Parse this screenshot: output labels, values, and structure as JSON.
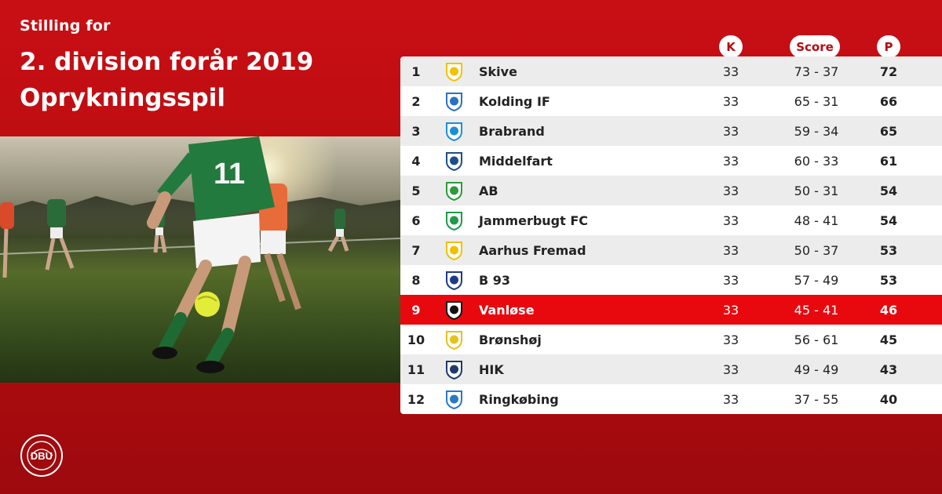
{
  "header": {
    "kicker": "Stilling for",
    "title_line1": "2. division forår 2019",
    "title_line2": "Oprykningsspil"
  },
  "columns": {
    "k": "K",
    "score": "Score",
    "p": "P"
  },
  "colors": {
    "brand_red": "#c80f14",
    "highlight_red": "#e8090f"
  },
  "standings": [
    {
      "pos": "1",
      "team": "Skive",
      "k": "33",
      "score": "73 - 37",
      "p": "72",
      "crest": "skive-crest-icon",
      "crest_color": "#f2c200"
    },
    {
      "pos": "2",
      "team": "Kolding IF",
      "k": "33",
      "score": "65 - 31",
      "p": "66",
      "crest": "kolding-if-crest-icon",
      "crest_color": "#2a72c4"
    },
    {
      "pos": "3",
      "team": "Brabrand",
      "k": "33",
      "score": "59 - 34",
      "p": "65",
      "crest": "brabrand-crest-icon",
      "crest_color": "#1b8fd6"
    },
    {
      "pos": "4",
      "team": "Middelfart",
      "k": "33",
      "score": "60 - 33",
      "p": "61",
      "crest": "middelfart-crest-icon",
      "crest_color": "#1d4e8a"
    },
    {
      "pos": "5",
      "team": "AB",
      "k": "33",
      "score": "50 - 31",
      "p": "54",
      "crest": "ab-crest-icon",
      "crest_color": "#2e9a3a"
    },
    {
      "pos": "6",
      "team": "Jammerbugt FC",
      "k": "33",
      "score": "48 - 41",
      "p": "54",
      "crest": "jammerbugt-fc-crest-icon",
      "crest_color": "#1f9a4a"
    },
    {
      "pos": "7",
      "team": "Aarhus Fremad",
      "k": "33",
      "score": "50 - 37",
      "p": "53",
      "crest": "aarhus-fremad-crest-icon",
      "crest_color": "#f0c000"
    },
    {
      "pos": "8",
      "team": "B 93",
      "k": "33",
      "score": "57 - 49",
      "p": "53",
      "crest": "b93-crest-icon",
      "crest_color": "#1d3a8a"
    },
    {
      "pos": "9",
      "team": "Vanløse",
      "k": "33",
      "score": "45 - 41",
      "p": "46",
      "crest": "vanlose-crest-icon",
      "crest_color": "#111111",
      "highlight": true
    },
    {
      "pos": "10",
      "team": "Brønshøj",
      "k": "33",
      "score": "56 - 61",
      "p": "45",
      "crest": "bronshoj-crest-icon",
      "crest_color": "#e4c21a"
    },
    {
      "pos": "11",
      "team": "HIK",
      "k": "33",
      "score": "49 - 49",
      "p": "43",
      "crest": "hik-crest-icon",
      "crest_color": "#1d3a6a"
    },
    {
      "pos": "12",
      "team": "Ringkøbing",
      "k": "33",
      "score": "37 - 55",
      "p": "40",
      "crest": "ringkobing-crest-icon",
      "crest_color": "#2a78c8"
    }
  ],
  "logo": {
    "icon": "dbu-logo-icon",
    "text": "DBU"
  }
}
